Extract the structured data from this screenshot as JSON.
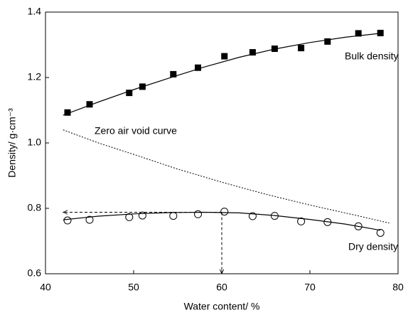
{
  "chart_data": {
    "type": "scatter",
    "xlabel": "Water content/ %",
    "ylabel": "Density/ g·cm⁻³",
    "xlim": [
      40,
      80
    ],
    "xticks": [
      40,
      50,
      60,
      70,
      80
    ],
    "ylim": [
      0.6,
      1.4
    ],
    "yticks": [
      0.6,
      0.8,
      {
        "value": 1,
        "label": "1.0"
      },
      1.2,
      1.4
    ],
    "series": [
      {
        "name": "Bulk density",
        "style": "square",
        "color": "#000000",
        "x": [
          42.5,
          45,
          49.5,
          51,
          54.5,
          57.3,
          60.3,
          63.5,
          66,
          69,
          72,
          75.5,
          78
        ],
        "values": [
          1.093,
          1.118,
          1.153,
          1.172,
          1.21,
          1.23,
          1.265,
          1.277,
          1.288,
          1.29,
          1.31,
          1.335,
          1.336
        ]
      },
      {
        "style": "line",
        "color": "#000000",
        "x": [
          42,
          46,
          50,
          54,
          58,
          62,
          66,
          70,
          74,
          78
        ],
        "values": [
          1.085,
          1.125,
          1.163,
          1.198,
          1.232,
          1.262,
          1.287,
          1.307,
          1.323,
          1.335
        ]
      },
      {
        "name": "Zero air void curve",
        "style": "dotted",
        "color": "#000000",
        "x": [
          42,
          46,
          50,
          55,
          60,
          65,
          70,
          75,
          79
        ],
        "values": [
          1.04,
          1.0,
          0.965,
          0.92,
          0.88,
          0.843,
          0.81,
          0.78,
          0.755
        ]
      },
      {
        "name": "Dry density",
        "style": "circle",
        "color": "#000000",
        "x": [
          42.5,
          45,
          49.5,
          51,
          54.5,
          57.3,
          60.3,
          63.5,
          66,
          69,
          72,
          75.5,
          78
        ],
        "values": [
          0.763,
          0.765,
          0.773,
          0.778,
          0.777,
          0.782,
          0.79,
          0.776,
          0.777,
          0.76,
          0.758,
          0.745,
          0.725
        ]
      },
      {
        "style": "line",
        "color": "#000000",
        "x": [
          42,
          46,
          50,
          54,
          58,
          62,
          66,
          70,
          74,
          78
        ],
        "values": [
          0.765,
          0.776,
          0.783,
          0.787,
          0.788,
          0.786,
          0.778,
          0.766,
          0.752,
          0.733
        ]
      }
    ],
    "guide_lines": [
      {
        "x": [
          60,
          42
        ],
        "values": [
          0.788,
          0.788
        ]
      },
      {
        "x": [
          60,
          60
        ],
        "values": [
          0.788,
          0.6
        ]
      }
    ]
  }
}
